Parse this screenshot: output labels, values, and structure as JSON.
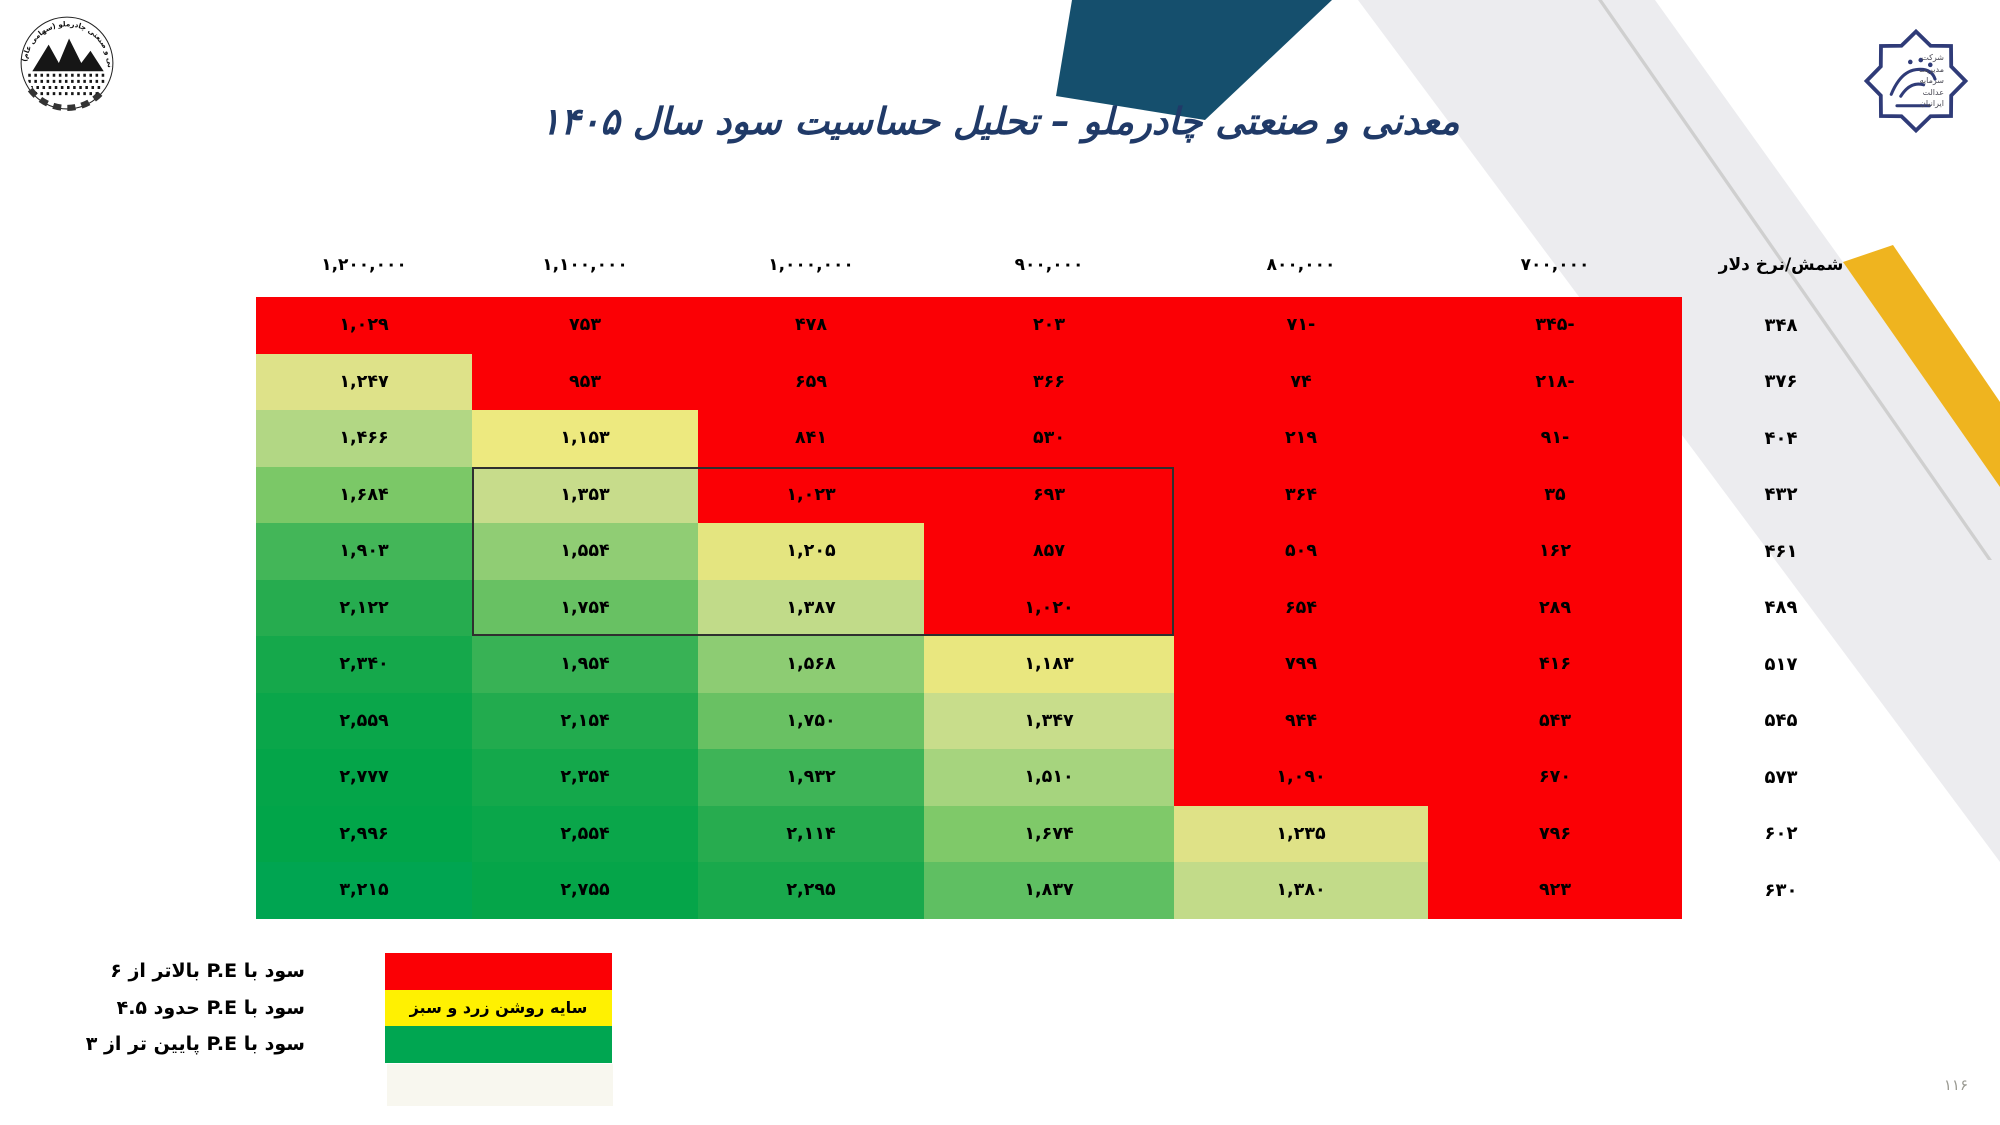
{
  "page": {
    "title": "معدنی و صنعتی چادرملو – تحلیل حساسیت سود سال ۱۴۰۵",
    "page_number": "۱۱۶"
  },
  "logos": {
    "left_name": "chadormalu-mining-industrial-company-logo",
    "left_arc_text": "شرکت معدنی و صنعتی چادرملو (سهامی عام)",
    "right_name": "investment-management-company-logo",
    "right_text_lines": [
      "شرکت",
      "مدیریت",
      "سرمایه",
      "عدالت",
      "ایرانیان"
    ]
  },
  "colors": {
    "title_navy": "#203A68",
    "ribbon_navy": "#154F6D",
    "band_gray": "#ECECEF",
    "ribbon_gold": "#EFB41F",
    "cell_red": "#FB0005",
    "legend_red": "#FB0005",
    "legend_yellow": "#FFF101",
    "legend_green": "#00A651"
  },
  "legend": {
    "items": [
      {
        "key": "red",
        "color": "#FB0005",
        "label": "سود با  P.E بالاتر از ۶",
        "band_text": ""
      },
      {
        "key": "yellow",
        "color": "#FFF101",
        "label": "سود با  P.E حدود ۴.۵",
        "band_text": "سایه روشن زرد و سبز"
      },
      {
        "key": "green",
        "color": "#00A651",
        "label": "سود با  P.E پایین تر از ۳",
        "band_text": ""
      }
    ]
  },
  "chart_data": {
    "type": "heatmap",
    "title": "معدنی و صنعتی چادرملو – تحلیل حساسیت سود سال ۱۴۰۵",
    "col_header_label": "شمش/نرخ دلار",
    "columns": [
      "۱,۲۰۰,۰۰۰",
      "۱,۱۰۰,۰۰۰",
      "۱,۰۰۰,۰۰۰",
      "۹۰۰,۰۰۰",
      "۸۰۰,۰۰۰",
      "۷۰۰,۰۰۰"
    ],
    "columns_numeric": [
      1200000,
      1100000,
      1000000,
      900000,
      800000,
      700000
    ],
    "rows": [
      "۳۴۸",
      "۳۷۶",
      "۴۰۴",
      "۴۳۲",
      "۴۶۱",
      "۴۸۹",
      "۵۱۷",
      "۵۴۵",
      "۵۷۳",
      "۶۰۲",
      "۶۳۰"
    ],
    "rows_numeric": [
      348,
      376,
      404,
      432,
      461,
      489,
      517,
      545,
      573,
      602,
      630
    ],
    "values": [
      [
        "۱,۰۲۹",
        "۷۵۳",
        "۴۷۸",
        "۲۰۳",
        "۷۱-",
        "۳۴۵-"
      ],
      [
        "۱,۲۴۷",
        "۹۵۳",
        "۶۵۹",
        "۳۶۶",
        "۷۴",
        "۲۱۸-"
      ],
      [
        "۱,۴۶۶",
        "۱,۱۵۳",
        "۸۴۱",
        "۵۳۰",
        "۲۱۹",
        "۹۱-"
      ],
      [
        "۱,۶۸۴",
        "۱,۳۵۳",
        "۱,۰۲۳",
        "۶۹۳",
        "۳۶۴",
        "۳۵"
      ],
      [
        "۱,۹۰۳",
        "۱,۵۵۴",
        "۱,۲۰۵",
        "۸۵۷",
        "۵۰۹",
        "۱۶۲"
      ],
      [
        "۲,۱۲۲",
        "۱,۷۵۴",
        "۱,۳۸۷",
        "۱,۰۲۰",
        "۶۵۴",
        "۲۸۹"
      ],
      [
        "۲,۳۴۰",
        "۱,۹۵۴",
        "۱,۵۶۸",
        "۱,۱۸۳",
        "۷۹۹",
        "۴۱۶"
      ],
      [
        "۲,۵۵۹",
        "۲,۱۵۴",
        "۱,۷۵۰",
        "۱,۳۴۷",
        "۹۴۴",
        "۵۴۳"
      ],
      [
        "۲,۷۷۷",
        "۲,۳۵۴",
        "۱,۹۳۲",
        "۱,۵۱۰",
        "۱,۰۹۰",
        "۶۷۰"
      ],
      [
        "۲,۹۹۶",
        "۲,۵۵۴",
        "۲,۱۱۴",
        "۱,۶۷۴",
        "۱,۲۳۵",
        "۷۹۶"
      ],
      [
        "۳,۲۱۵",
        "۲,۷۵۵",
        "۲,۲۹۵",
        "۱,۸۳۷",
        "۱,۳۸۰",
        "۹۲۳"
      ]
    ],
    "values_numeric": [
      [
        1029,
        753,
        478,
        203,
        -71,
        -345
      ],
      [
        1247,
        953,
        659,
        366,
        74,
        -218
      ],
      [
        1466,
        1153,
        841,
        530,
        219,
        -91
      ],
      [
        1684,
        1353,
        1023,
        693,
        364,
        35
      ],
      [
        1903,
        1554,
        1205,
        857,
        509,
        162
      ],
      [
        2122,
        1754,
        1387,
        1020,
        654,
        289
      ],
      [
        2340,
        1954,
        1568,
        1183,
        799,
        416
      ],
      [
        2559,
        2154,
        1750,
        1347,
        944,
        543
      ],
      [
        2777,
        2354,
        1932,
        1510,
        1090,
        670
      ],
      [
        2996,
        2554,
        2114,
        1674,
        1235,
        796
      ],
      [
        3215,
        2755,
        2295,
        1837,
        1380,
        923
      ]
    ],
    "cell_colors": [
      [
        "#FB0005",
        "#FB0005",
        "#FB0005",
        "#FB0005",
        "#FB0005",
        "#FB0005"
      ],
      [
        "#DEE289",
        "#FB0005",
        "#FB0005",
        "#FB0005",
        "#FB0005",
        "#FB0005"
      ],
      [
        "#B2D784",
        "#EDE97F",
        "#FB0005",
        "#FB0005",
        "#FB0005",
        "#FB0005"
      ],
      [
        "#7BC867",
        "#C7DC8B",
        "#FB0005",
        "#FB0005",
        "#FB0005",
        "#FB0005"
      ],
      [
        "#43B658",
        "#90CD74",
        "#E4E580",
        "#FB0005",
        "#FB0005",
        "#FB0005"
      ],
      [
        "#26AC4F",
        "#68C163",
        "#C1DB89",
        "#FB0005",
        "#FB0005",
        "#FB0005"
      ],
      [
        "#15A84B",
        "#38B255",
        "#8DCC73",
        "#E9E77F",
        "#FB0005",
        "#FB0005"
      ],
      [
        "#0AA64A",
        "#22AB4E",
        "#69C163",
        "#C8DD8B",
        "#FB0005",
        "#FB0005"
      ],
      [
        "#04A549",
        "#14A84B",
        "#3EB457",
        "#A6D47E",
        "#FB0005",
        "#FB0005"
      ],
      [
        "#01A549",
        "#0AA64A",
        "#27AC4F",
        "#7FC969",
        "#DFE287",
        "#FB0005"
      ],
      [
        "#00A551",
        "#05A549",
        "#19A94C",
        "#5FBF62",
        "#C2DB89",
        "#FB0005"
      ]
    ],
    "highlight_box": {
      "row_start": 3,
      "row_end": 5,
      "col_start": 1,
      "col_end": 3
    },
    "legend_position": "bottom-left",
    "grid": false
  }
}
